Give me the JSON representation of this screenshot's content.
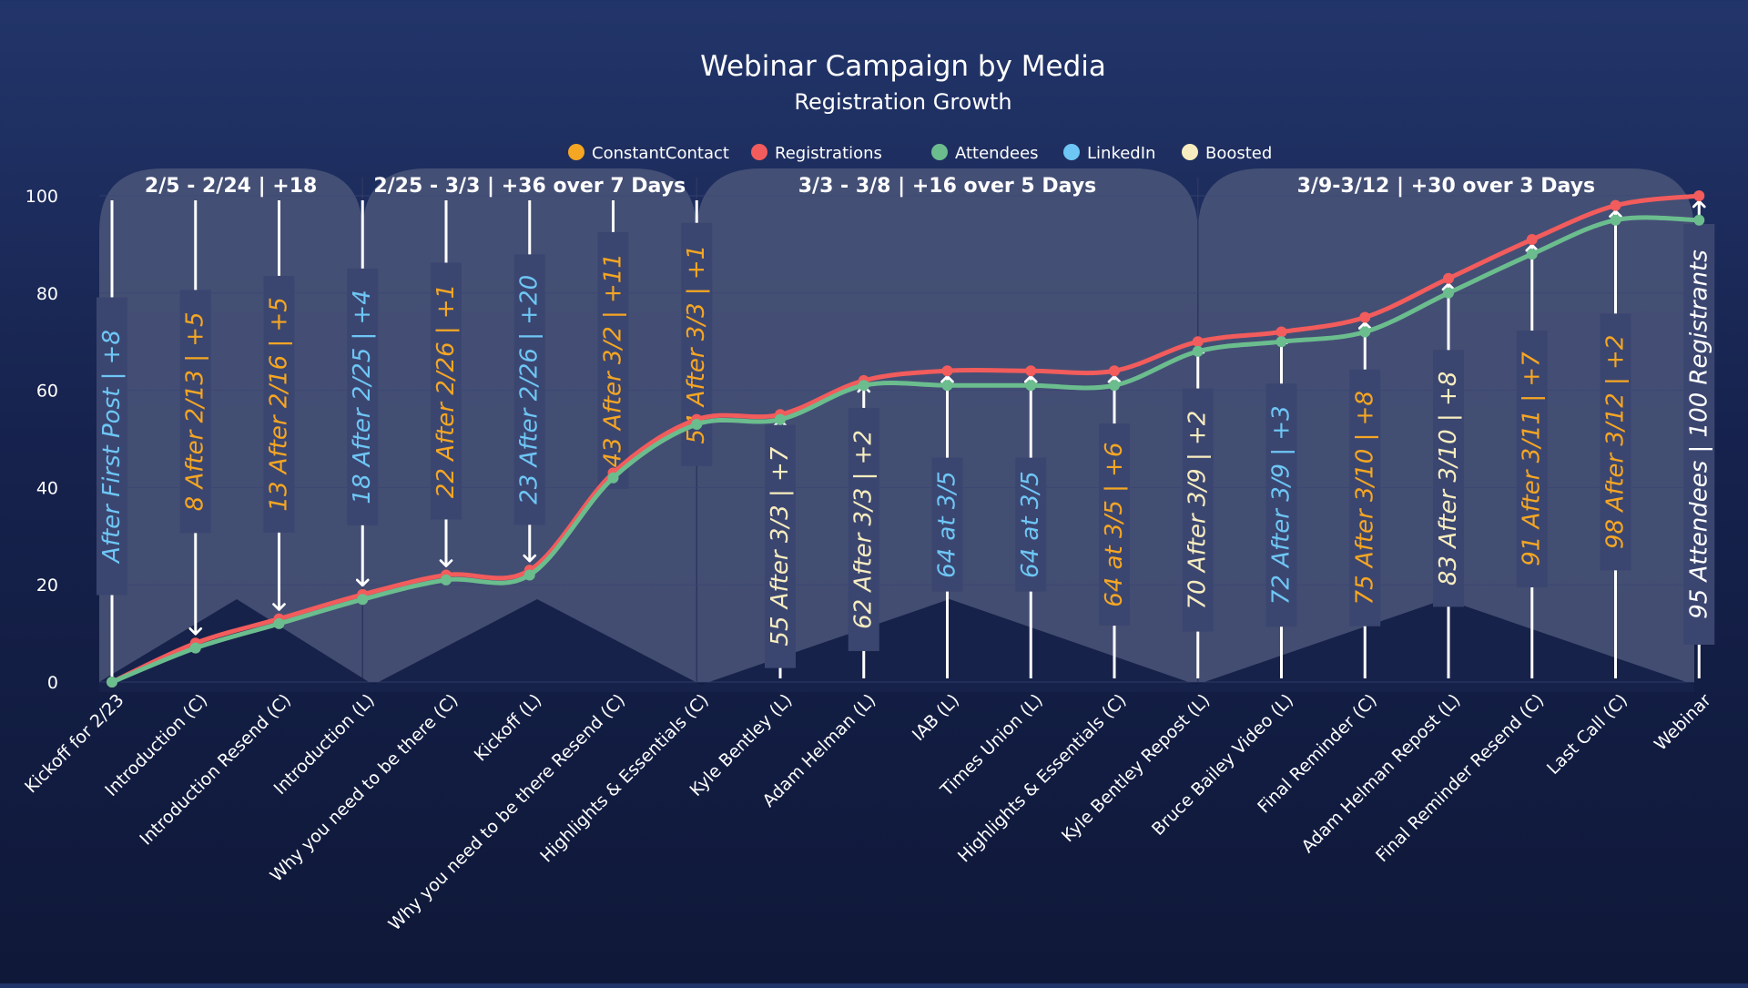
{
  "chart_data": {
    "type": "line",
    "title": "Webinar Campaign by Media",
    "subtitle": "Registration Growth",
    "ylim": [
      0,
      100
    ],
    "yticks": [
      0,
      20,
      40,
      60,
      80,
      100
    ],
    "grid": true,
    "legend_position": "top-center",
    "legend": [
      {
        "label": "ConstantContact",
        "color": "#f5a623"
      },
      {
        "label": "Registrations",
        "color": "#f25c5c"
      },
      {
        "label": "Attendees",
        "color": "#6bbd8e"
      },
      {
        "label": "LinkedIn",
        "color": "#6ec6f5"
      },
      {
        "label": "Boosted",
        "color": "#f8edc0"
      }
    ],
    "categories": [
      "Kickoff for 2/23",
      "Introduction (C)",
      "Introduction Resend (C)",
      "Introduction (L)",
      "Why you need to be there (C)",
      "Kickoff (L)",
      "Why you need to be there Resend (C)",
      "Highlights & Essentials (C)",
      "Kyle Bentley (L)",
      "Adam Helman (L)",
      "IAB (L)",
      "Times Union (L)",
      "Highlights & Essentials (C)",
      "Kyle Bentley Repost (L)",
      "Bruce Bailey Video (L)",
      "Final Reminder (C)",
      "Adam Helman Repost (L)",
      "Final Reminder Resend (C)",
      "Last Call (C)",
      "Webinar"
    ],
    "series": [
      {
        "name": "Registrations",
        "color": "#f25c5c",
        "values": [
          0,
          8,
          13,
          18,
          22,
          23,
          43,
          54,
          55,
          62,
          64,
          64,
          64,
          70,
          72,
          75,
          83,
          91,
          98,
          100
        ]
      },
      {
        "name": "Attendees",
        "color": "#6bbd8e",
        "values": [
          0,
          7,
          12,
          17,
          21,
          22,
          42,
          53,
          54,
          61,
          61,
          61,
          61,
          68,
          70,
          72,
          80,
          88,
          95,
          95
        ]
      }
    ],
    "periods": [
      {
        "label": "2/5 - 2/24 | +18",
        "from": 0,
        "to": 3
      },
      {
        "label": "2/25 - 3/3 | +36 over 7 Days",
        "from": 3,
        "to": 7
      },
      {
        "label": "3/3 - 3/8 | +16 over 5 Days",
        "from": 7,
        "to": 13
      },
      {
        "label": "3/9-3/12 | +30 over 3 Days",
        "from": 13,
        "to": 19
      }
    ],
    "annotations": [
      {
        "index": 0,
        "text": "After First Post | +8",
        "color": "#6ec6f5"
      },
      {
        "index": 1,
        "text": "8 After 2/13 | +5",
        "color": "#f5a623"
      },
      {
        "index": 2,
        "text": "13 After 2/16 | +5",
        "color": "#f5a623"
      },
      {
        "index": 3,
        "text": "18 After 2/25 | +4",
        "color": "#6ec6f5"
      },
      {
        "index": 4,
        "text": "22 After 2/26 | +1",
        "color": "#f5a623"
      },
      {
        "index": 5,
        "text": "23 After 2/26 | +20",
        "color": "#6ec6f5"
      },
      {
        "index": 6,
        "text": "43 After 3/2 | +11",
        "color": "#f5a623"
      },
      {
        "index": 7,
        "text": "54 After 3/3 | +1",
        "color": "#f5a623"
      },
      {
        "index": 8,
        "text": "55 After 3/3 | +7",
        "color": "#f8edc0"
      },
      {
        "index": 9,
        "text": "62 After 3/3 | +2",
        "color": "#f8edc0"
      },
      {
        "index": 10,
        "text": "64 at 3/5",
        "color": "#6ec6f5"
      },
      {
        "index": 11,
        "text": "64 at 3/5",
        "color": "#6ec6f5"
      },
      {
        "index": 12,
        "text": "64 at 3/5 | +6",
        "color": "#f5a623"
      },
      {
        "index": 13,
        "text": "70 After 3/9 | +2",
        "color": "#f8edc0"
      },
      {
        "index": 14,
        "text": "72 After 3/9 | +3",
        "color": "#6ec6f5"
      },
      {
        "index": 15,
        "text": "75 After 3/10 | +8",
        "color": "#f5a623"
      },
      {
        "index": 16,
        "text": "83 After 3/10 | +8",
        "color": "#f8edc0"
      },
      {
        "index": 17,
        "text": "91 After 3/11 | +7",
        "color": "#f5a623"
      },
      {
        "index": 18,
        "text": "98 After 3/12 | +2",
        "color": "#f5a623"
      },
      {
        "index": 19,
        "text": "95 Attendees | 100 Registrants",
        "color": "#ffffff"
      }
    ],
    "colors": {
      "panel": "#4a5479",
      "grid": "#3a4674",
      "text": "#ffffff"
    }
  }
}
